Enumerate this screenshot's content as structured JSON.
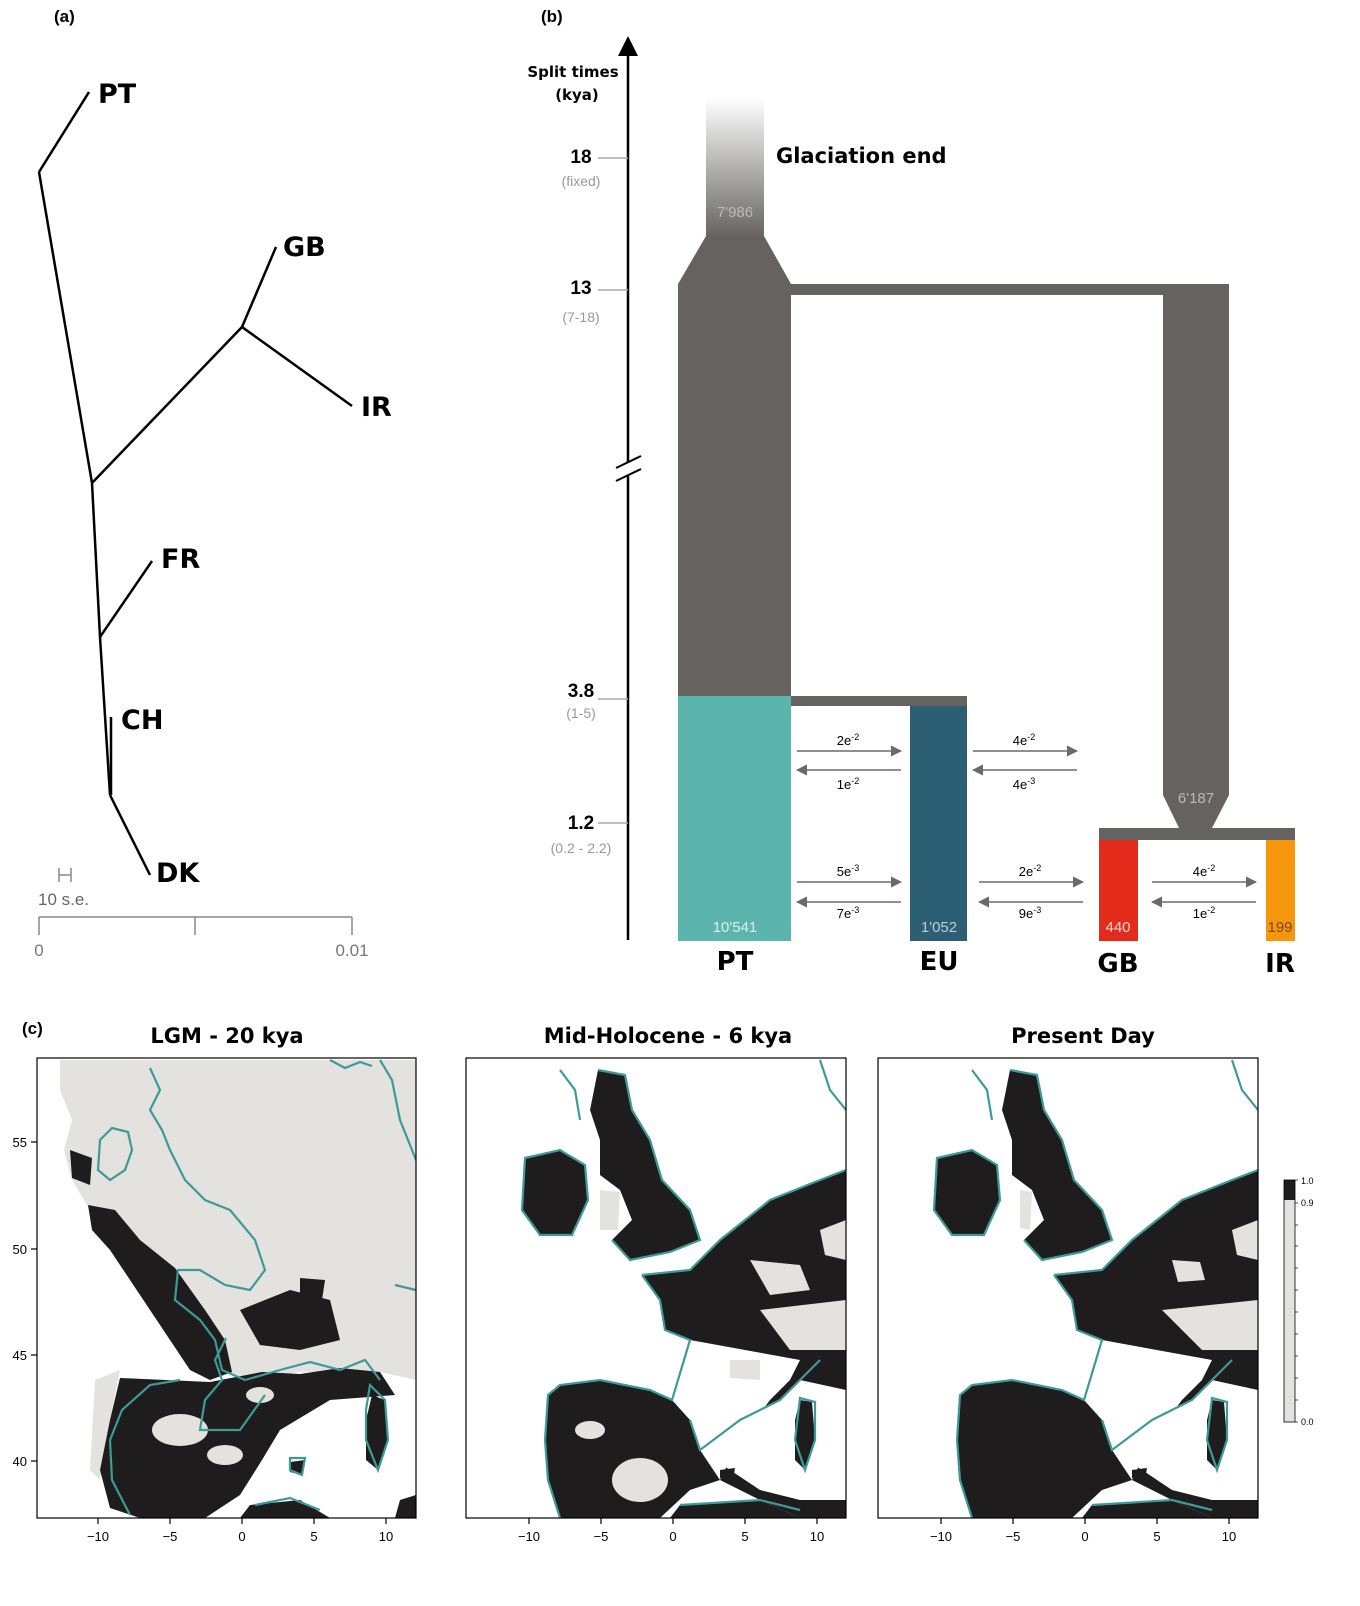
{
  "panel_a": {
    "label": "(a)",
    "tips": [
      {
        "name": "PT"
      },
      {
        "name": "GB"
      },
      {
        "name": "IR"
      },
      {
        "name": "FR"
      },
      {
        "name": "CH"
      },
      {
        "name": "DK"
      }
    ],
    "se_bar_label": "10 s.e.",
    "scale": {
      "min_label": "0",
      "max_label": "0.01"
    }
  },
  "panel_b": {
    "label": "(b)",
    "axis_title_line1": "Split times",
    "axis_title_line2": "(kya)",
    "ticks": [
      {
        "value": "18",
        "range": "(fixed)"
      },
      {
        "value": "13",
        "range": "(7-18)"
      },
      {
        "value": "3.8",
        "range": "(1-5)"
      },
      {
        "value": "1.2",
        "range": "(0.2 - 2.2)"
      }
    ],
    "glaciation_label": "Glaciation end",
    "ancestral_size": "7'986",
    "ancestral_branch_size": "6'187",
    "populations": [
      {
        "name": "PT",
        "size": "10'541",
        "color": "#5cb5ad"
      },
      {
        "name": "EU",
        "size": "1'052",
        "color": "#2d5f74"
      },
      {
        "name": "GB",
        "size": "440",
        "color": "#e22b1b"
      },
      {
        "name": "IR",
        "size": "199",
        "color": "#f5960d"
      }
    ],
    "ancestral_color": "#656260",
    "migration": {
      "pt_eu_top": {
        "fwd": "2e",
        "fwd_exp": "-2",
        "rev": "1e",
        "rev_exp": "-2"
      },
      "eu_right_top": {
        "fwd": "4e",
        "fwd_exp": "-2",
        "rev": "4e",
        "rev_exp": "-3"
      },
      "pt_eu_bottom": {
        "fwd": "5e",
        "fwd_exp": "-3",
        "rev": "7e",
        "rev_exp": "-3"
      },
      "eu_gb": {
        "fwd": "2e",
        "fwd_exp": "-2",
        "rev": "9e",
        "rev_exp": "-3"
      },
      "gb_ir": {
        "fwd": "4e",
        "fwd_exp": "-2",
        "rev": "1e",
        "rev_exp": "-2"
      }
    }
  },
  "panel_c": {
    "label": "(c)",
    "maps": [
      {
        "title": "LGM - 20 kya",
        "period": "lgm"
      },
      {
        "title": "Mid-Holocene - 6 kya",
        "period": "midholocene"
      },
      {
        "title": "Present Day",
        "period": "present"
      }
    ],
    "lat_ticks": [
      "55",
      "50",
      "45",
      "40"
    ],
    "lon_ticks": [
      "−10",
      "−5",
      "0",
      "5",
      "10"
    ],
    "colorbar": {
      "top_label": "1.0",
      "mid_label": "0.9",
      "bottom_label": "0.0",
      "high_color": "#1e1c1c",
      "low_color": "#e3e2de"
    },
    "coast_color": "#3e9a97"
  }
}
